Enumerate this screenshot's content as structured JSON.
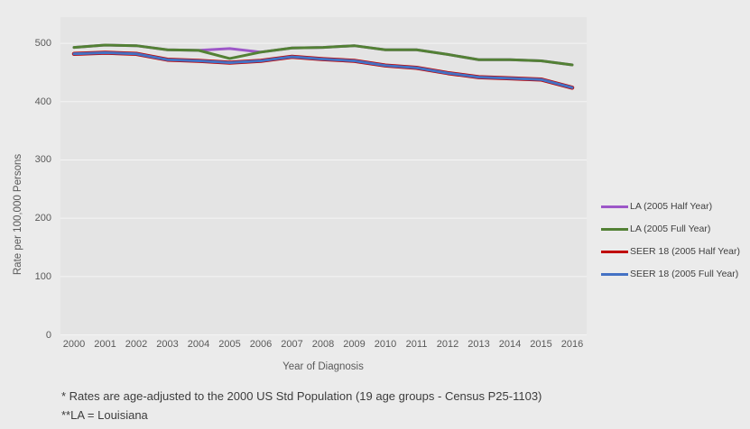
{
  "chart_data": {
    "type": "line",
    "title": "",
    "xlabel": "Year of Diagnosis",
    "ylabel": "Rate per 100,000 Persons",
    "x": [
      2000,
      2001,
      2002,
      2003,
      2004,
      2005,
      2006,
      2007,
      2008,
      2009,
      2010,
      2011,
      2012,
      2013,
      2014,
      2015,
      2016
    ],
    "y_ticks": [
      0,
      100,
      200,
      300,
      400,
      500
    ],
    "ylim": [
      0,
      545
    ],
    "grid": true,
    "legend_position": "right",
    "series": [
      {
        "name": "LA (2005 Half Year)",
        "color": "#9D57C8",
        "values": [
          493,
          497,
          496,
          489,
          488,
          491,
          485,
          492,
          493,
          496,
          489,
          489,
          481,
          472,
          472,
          470,
          463
        ]
      },
      {
        "name": "LA (2005 Full Year)",
        "color": "#538135",
        "values": [
          493,
          497,
          496,
          489,
          488,
          474,
          485,
          492,
          493,
          496,
          489,
          489,
          481,
          472,
          472,
          470,
          463
        ]
      },
      {
        "name": "SEER 18 (2005 Half Year)",
        "color": "#C00000",
        "values": [
          482,
          484,
          482,
          472,
          470,
          467,
          470,
          477,
          473,
          470,
          462,
          458,
          449,
          442,
          440,
          438,
          424
        ]
      },
      {
        "name": "SEER 18 (2005 Full Year)",
        "color": "#4472C4",
        "values": [
          482,
          484,
          482,
          472,
          470,
          467,
          470,
          477,
          473,
          470,
          462,
          458,
          449,
          442,
          440,
          438,
          424
        ]
      }
    ]
  },
  "footnotes": [
    "* Rates are age-adjusted to the 2000  US Std Population (19 age groups - Census P25-1103)",
    "**LA = Louisiana"
  ],
  "colors": {
    "outer_background": "#ebebeb",
    "plot_background": "#e4e4e4",
    "gridline": "#f4f4f4",
    "axis_text": "#595959",
    "legend_text": "#404040",
    "footnote_text": "#3c3c3c"
  }
}
